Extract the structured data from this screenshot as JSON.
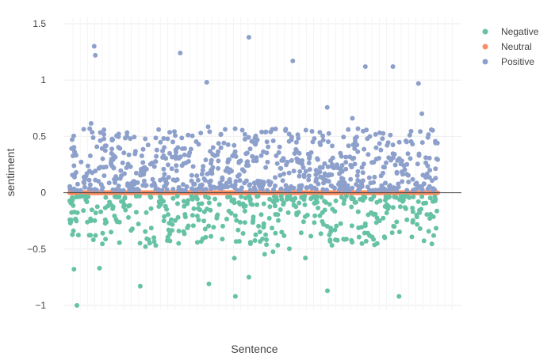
{
  "chart_data": {
    "type": "scatter",
    "title": "",
    "xlabel": "Sentence",
    "ylabel": "sentiment",
    "ylim": [
      -1.1,
      1.55
    ],
    "y_ticks": [
      {
        "value": 1.5,
        "label": "1.5"
      },
      {
        "value": 1,
        "label": "1"
      },
      {
        "value": 0.5,
        "label": "0.5"
      },
      {
        "value": 0,
        "label": "0"
      },
      {
        "value": -0.5,
        "label": "−0.5"
      },
      {
        "value": -1,
        "label": "−1"
      }
    ],
    "x_tick_labels_shown": false,
    "grid": true,
    "zero_line": true,
    "legend": {
      "position": "top-right"
    },
    "n_points_approx": 1400,
    "series": [
      {
        "name": "Negative",
        "color": "#66c2a5",
        "marker": "circle",
        "sample_points": [
          {
            "x": 7,
            "y": -1.0
          },
          {
            "x": 69,
            "y": -0.83
          },
          {
            "x": 136,
            "y": -0.81
          },
          {
            "x": 162,
            "y": -0.92
          },
          {
            "x": 175,
            "y": -0.75
          },
          {
            "x": 252,
            "y": -0.87
          },
          {
            "x": 322,
            "y": -0.92
          },
          {
            "x": 4,
            "y": -0.68
          },
          {
            "x": 29,
            "y": -0.67
          }
        ]
      },
      {
        "name": "Neutral",
        "color": "#fc8d62",
        "marker": "circle",
        "sample_points": [
          {
            "x": 0,
            "y": 0
          },
          {
            "x": 200,
            "y": 0
          },
          {
            "x": 400,
            "y": 0
          }
        ]
      },
      {
        "name": "Positive",
        "color": "#8da0cb",
        "marker": "circle",
        "sample_points": [
          {
            "x": 24,
            "y": 1.3
          },
          {
            "x": 25,
            "y": 1.22
          },
          {
            "x": 108,
            "y": 1.24
          },
          {
            "x": 175,
            "y": 1.38
          },
          {
            "x": 218,
            "y": 1.17
          },
          {
            "x": 289,
            "y": 1.12
          },
          {
            "x": 316,
            "y": 1.12
          },
          {
            "x": 341,
            "y": 0.97
          },
          {
            "x": 134,
            "y": 0.98
          }
        ]
      }
    ]
  }
}
